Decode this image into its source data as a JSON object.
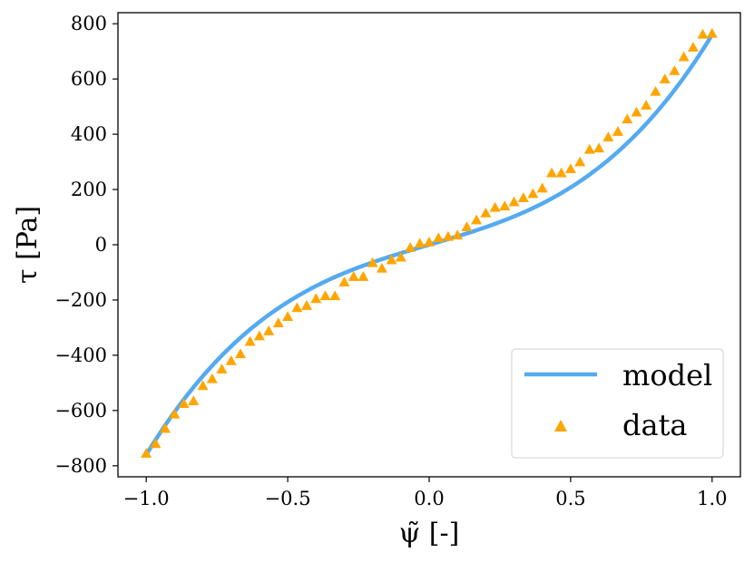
{
  "chart_data": {
    "type": "line",
    "title": "",
    "xlabel": "ψ̃ [-]",
    "ylabel": "τ [Pa]",
    "xlim": [
      -1.1,
      1.1
    ],
    "ylim": [
      -840,
      840
    ],
    "xticks": [
      -1.0,
      -0.5,
      0.0,
      0.5,
      1.0
    ],
    "xtick_labels": [
      "−1.0",
      "−0.5",
      "0.0",
      "0.5",
      "1.0"
    ],
    "yticks": [
      -800,
      -600,
      -400,
      -200,
      0,
      200,
      400,
      600,
      800
    ],
    "ytick_labels": [
      "−800",
      "−600",
      "−400",
      "−200",
      "0",
      "200",
      "400",
      "600",
      "800"
    ],
    "grid": false,
    "legend_position": "bottom-right",
    "series": [
      {
        "name": "model",
        "kind": "line",
        "color": "#55aaf0",
        "model": {
          "form": "a*x + b*x^3",
          "a": 300,
          "b": 460
        },
        "x_range": [
          -1.0,
          1.0
        ]
      },
      {
        "name": "data",
        "kind": "scatter",
        "marker": "triangle",
        "color": "#ffa500",
        "x": [
          -1.0,
          -0.967,
          -0.933,
          -0.9,
          -0.867,
          -0.833,
          -0.8,
          -0.767,
          -0.733,
          -0.7,
          -0.667,
          -0.633,
          -0.6,
          -0.567,
          -0.533,
          -0.5,
          -0.467,
          -0.433,
          -0.4,
          -0.367,
          -0.333,
          -0.3,
          -0.267,
          -0.233,
          -0.2,
          -0.167,
          -0.133,
          -0.1,
          -0.067,
          -0.033,
          0.0,
          0.033,
          0.067,
          0.1,
          0.133,
          0.167,
          0.2,
          0.233,
          0.267,
          0.3,
          0.333,
          0.367,
          0.4,
          0.433,
          0.467,
          0.5,
          0.533,
          0.567,
          0.6,
          0.633,
          0.667,
          0.7,
          0.733,
          0.767,
          0.8,
          0.833,
          0.867,
          0.9,
          0.933,
          0.967,
          1.0
        ],
        "y": [
          -755,
          -720,
          -665,
          -613,
          -575,
          -565,
          -510,
          -485,
          -450,
          -420,
          -395,
          -350,
          -330,
          -312,
          -283,
          -260,
          -228,
          -220,
          -195,
          -185,
          -185,
          -135,
          -115,
          -115,
          -65,
          -85,
          -55,
          -45,
          -10,
          5,
          10,
          25,
          30,
          35,
          65,
          90,
          115,
          135,
          140,
          155,
          170,
          185,
          205,
          260,
          260,
          275,
          300,
          345,
          350,
          390,
          410,
          455,
          480,
          505,
          555,
          600,
          630,
          680,
          715,
          762,
          765
        ]
      }
    ]
  }
}
